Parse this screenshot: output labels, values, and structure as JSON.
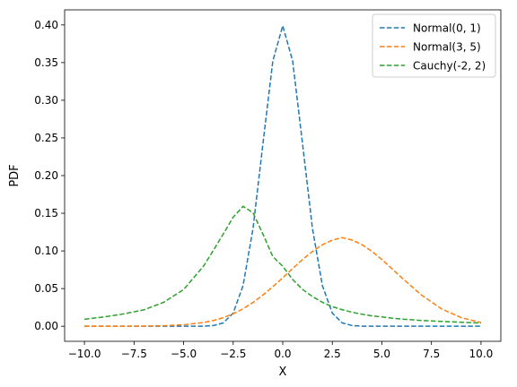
{
  "chart_data": {
    "type": "line",
    "title": "",
    "xlabel": "X",
    "ylabel": "PDF",
    "xlim": [
      -11.0,
      11.0
    ],
    "ylim": [
      -0.02,
      0.42
    ],
    "grid": false,
    "legend_position": "top-right",
    "line_style": "dashed",
    "x_ticks": [
      -10.0,
      -7.5,
      -5.0,
      -2.5,
      0.0,
      2.5,
      5.0,
      7.5,
      10.0
    ],
    "x_tick_labels": [
      "−10.0",
      "−7.5",
      "−5.0",
      "−2.5",
      "0.0",
      "2.5",
      "5.0",
      "7.5",
      "10.0"
    ],
    "y_ticks": [
      0.0,
      0.05,
      0.1,
      0.15,
      0.2,
      0.25,
      0.3,
      0.35,
      0.4
    ],
    "y_tick_labels": [
      "0.00",
      "0.05",
      "0.10",
      "0.15",
      "0.20",
      "0.25",
      "0.30",
      "0.35",
      "0.40"
    ],
    "x": [
      -10,
      -9,
      -8,
      -7,
      -6,
      -5,
      -4,
      -3.5,
      -3,
      -2.5,
      -2,
      -1.5,
      -1,
      -0.5,
      0,
      0.5,
      1,
      1.5,
      2,
      2.5,
      3,
      3.5,
      4,
      4.5,
      5,
      5.5,
      6,
      7,
      8,
      9,
      10
    ],
    "series": [
      {
        "name": "Normal(0, 1)",
        "color": "#1f77b4",
        "values": [
          0.0,
          0.0,
          0.0,
          0.0,
          0.0,
          0.0,
          0.0001,
          0.0009,
          0.0044,
          0.0175,
          0.054,
          0.1295,
          0.242,
          0.3521,
          0.3989,
          0.3521,
          0.242,
          0.1295,
          0.054,
          0.0175,
          0.0044,
          0.0009,
          0.0001,
          0.0,
          0.0,
          0.0,
          0.0,
          0.0,
          0.0,
          0.0,
          0.0
        ]
      },
      {
        "name": "Normal(3, 5)",
        "color": "#ff7f0e",
        "values": [
          0.0,
          0.0,
          0.0001,
          0.0002,
          0.0007,
          0.0019,
          0.0049,
          0.0076,
          0.0114,
          0.0165,
          0.0232,
          0.0315,
          0.0414,
          0.0525,
          0.0644,
          0.0766,
          0.0886,
          0.0993,
          0.1082,
          0.1144,
          0.1176,
          0.1144,
          0.1082,
          0.0993,
          0.0886,
          0.0766,
          0.0644,
          0.0414,
          0.0232,
          0.0114,
          0.0049
        ]
      },
      {
        "name": "Cauchy(-2, 2)",
        "color": "#2ca02c",
        "values": [
          0.0093,
          0.0124,
          0.0165,
          0.0218,
          0.0318,
          0.0487,
          0.0796,
          0.1006,
          0.1224,
          0.1447,
          0.1592,
          0.1507,
          0.1224,
          0.0925,
          0.0796,
          0.0621,
          0.0489,
          0.0394,
          0.0318,
          0.026,
          0.0219,
          0.0186,
          0.0159,
          0.0138,
          0.0124,
          0.0108,
          0.0095,
          0.0077,
          0.0064,
          0.0053,
          0.0043
        ]
      }
    ]
  }
}
